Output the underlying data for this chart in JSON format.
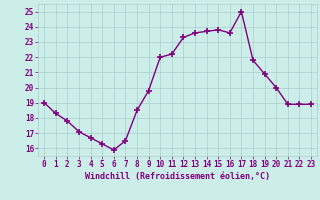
{
  "x": [
    0,
    1,
    2,
    3,
    4,
    5,
    6,
    7,
    8,
    9,
    10,
    11,
    12,
    13,
    14,
    15,
    16,
    17,
    18,
    19,
    20,
    21,
    22,
    23
  ],
  "y": [
    19.0,
    18.3,
    17.8,
    17.1,
    16.7,
    16.3,
    15.9,
    16.5,
    18.5,
    19.8,
    22.0,
    22.2,
    23.3,
    23.6,
    23.7,
    23.8,
    23.6,
    25.0,
    21.8,
    20.9,
    20.0,
    18.9,
    18.9,
    18.9
  ],
  "line_color": "#800080",
  "marker": "+",
  "marker_size": 4,
  "marker_lw": 1.2,
  "line_width": 1.0,
  "background_color": "#cceee8",
  "grid_color": "#aacccc",
  "xlabel": "Windchill (Refroidissement éolien,°C)",
  "xlabel_color": "#800080",
  "tick_color": "#800080",
  "ylim": [
    15.5,
    25.5
  ],
  "yticks": [
    16,
    17,
    18,
    19,
    20,
    21,
    22,
    23,
    24,
    25
  ],
  "xticks": [
    0,
    1,
    2,
    3,
    4,
    5,
    6,
    7,
    8,
    9,
    10,
    11,
    12,
    13,
    14,
    15,
    16,
    17,
    18,
    19,
    20,
    21,
    22,
    23
  ],
  "tick_fontsize": 5.5,
  "xlabel_fontsize": 6.0
}
